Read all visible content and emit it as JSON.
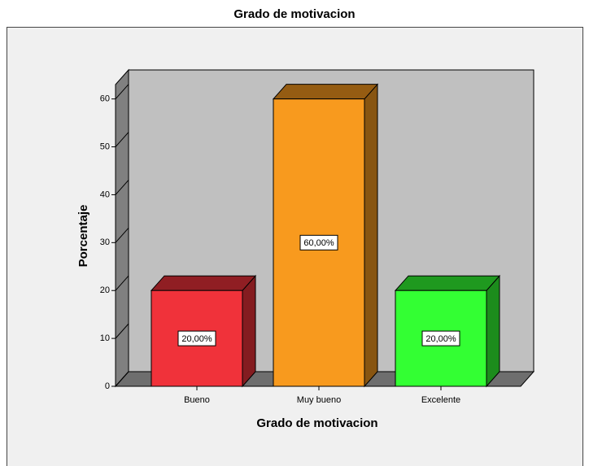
{
  "chart_data": {
    "type": "bar",
    "title": "Grado de motivacion",
    "x_label": "Grado de motivacion",
    "y_label": "Porcentaje",
    "categories": [
      "Bueno",
      "Muy bueno",
      "Excelente"
    ],
    "values": [
      20,
      60,
      20
    ],
    "value_labels": [
      "20,00%",
      "60,00%",
      "20,00%"
    ],
    "colors": [
      "#f0323a",
      "#f89a1e",
      "#33ff33"
    ],
    "ylim": [
      0,
      63
    ],
    "yticks": [
      0,
      10,
      20,
      30,
      40,
      50,
      60
    ]
  }
}
